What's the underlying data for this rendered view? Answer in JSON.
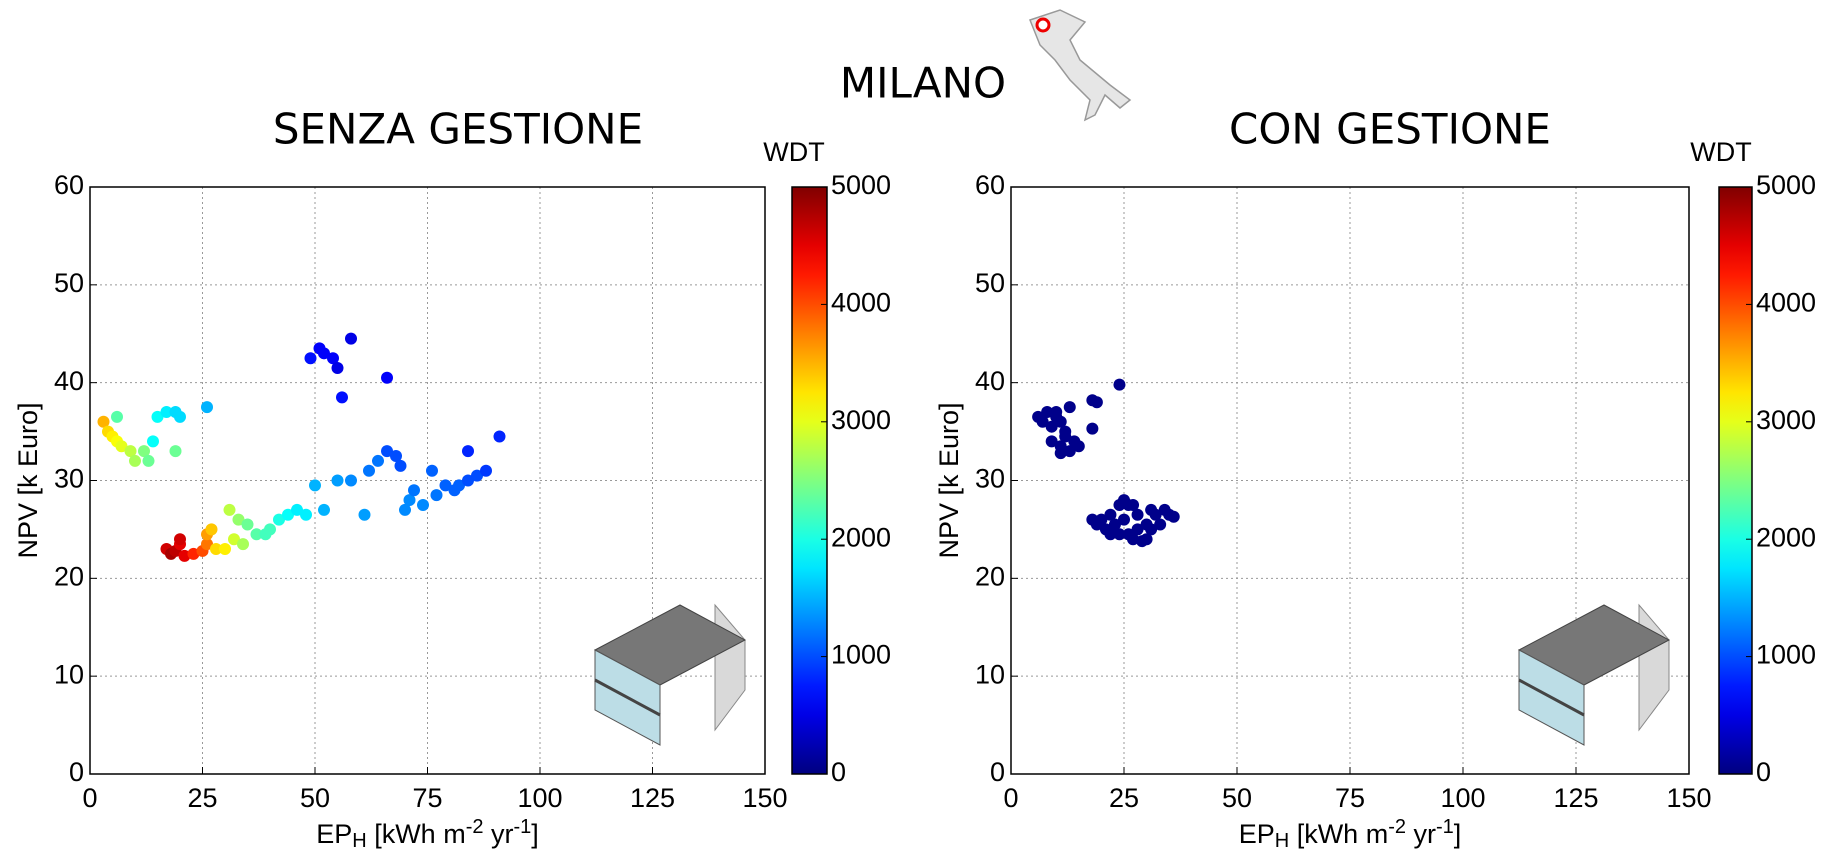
{
  "subtitle": "MILANO",
  "chart_data": [
    {
      "type": "scatter",
      "title": "SENZA GESTIONE",
      "xlabel": [
        "EP",
        "H",
        " [kWh m",
        "-2",
        " yr",
        "-1",
        "]"
      ],
      "ylabel": "NPV [k Euro]",
      "xlim": [
        0,
        150
      ],
      "ylim": [
        0,
        60
      ],
      "xticks": [
        0,
        25,
        50,
        75,
        100,
        125,
        150
      ],
      "yticks": [
        0,
        10,
        20,
        30,
        40,
        50,
        60
      ],
      "grid": true,
      "colorbar": {
        "label": "WDT",
        "clim": [
          0,
          5000
        ],
        "ticks": [
          0,
          1000,
          2000,
          3000,
          4000,
          5000
        ],
        "colormap": "jet"
      },
      "x": [
        3,
        4,
        5,
        6,
        7,
        9,
        10,
        12,
        13,
        6,
        15,
        17,
        19,
        20,
        19,
        14,
        26,
        17,
        18,
        19,
        20,
        20,
        21,
        23,
        25,
        26,
        26,
        27,
        28,
        30,
        31,
        32,
        33,
        34,
        35,
        37,
        39,
        40,
        42,
        44,
        46,
        48,
        52,
        50,
        55,
        58,
        61,
        62,
        64,
        66,
        68,
        69,
        70,
        71,
        72,
        74,
        76,
        77,
        79,
        81,
        82,
        84,
        86,
        88,
        84,
        91,
        49,
        51,
        52,
        54,
        55,
        56,
        58,
        66
      ],
      "y": [
        36,
        35,
        34.5,
        34,
        33.5,
        33,
        32,
        33,
        32,
        36.5,
        36.5,
        37,
        37,
        36.5,
        33,
        34,
        37.5,
        23,
        22.5,
        22.8,
        23.5,
        24,
        22.3,
        22.5,
        22.8,
        23.5,
        24.5,
        25,
        23,
        23,
        27,
        24,
        26,
        23.5,
        25.5,
        24.5,
        24.5,
        25,
        26,
        26.5,
        27,
        26.5,
        27,
        29.5,
        30,
        30,
        26.5,
        31,
        32,
        33,
        32.5,
        31.5,
        27,
        28,
        29,
        27.5,
        31,
        28.5,
        29.5,
        29,
        29.5,
        30,
        30.5,
        31,
        33,
        34.5,
        42.5,
        43.5,
        43,
        42.5,
        41.5,
        38.5,
        44.5,
        40.5
      ],
      "c": [
        3500,
        3300,
        3200,
        3100,
        3000,
        2800,
        2700,
        2500,
        2400,
        2300,
        1900,
        1800,
        1700,
        1700,
        2400,
        1900,
        1500,
        4600,
        4800,
        4700,
        4500,
        4600,
        4500,
        4200,
        4000,
        3800,
        3600,
        3400,
        3300,
        3200,
        2800,
        2900,
        2600,
        2700,
        2400,
        2300,
        2200,
        2200,
        2000,
        1900,
        1800,
        1800,
        1500,
        1500,
        1400,
        1300,
        1400,
        1200,
        1200,
        1000,
        1000,
        1000,
        1300,
        1300,
        1200,
        1300,
        1100,
        1200,
        1100,
        1100,
        1100,
        1000,
        1000,
        900,
        800,
        800,
        700,
        600,
        600,
        600,
        500,
        700,
        500,
        600
      ]
    },
    {
      "type": "scatter",
      "title": "CON GESTIONE",
      "xlabel": [
        "EP",
        "H",
        " [kWh m",
        "-2",
        " yr",
        "-1",
        "]"
      ],
      "ylabel": "NPV [k Euro]",
      "xlim": [
        0,
        150
      ],
      "ylim": [
        0,
        60
      ],
      "xticks": [
        0,
        25,
        50,
        75,
        100,
        125,
        150
      ],
      "yticks": [
        0,
        10,
        20,
        30,
        40,
        50,
        60
      ],
      "grid": true,
      "colorbar": {
        "label": "WDT",
        "clim": [
          0,
          5000
        ],
        "ticks": [
          0,
          1000,
          2000,
          3000,
          4000,
          5000
        ],
        "colormap": "jet"
      },
      "x": [
        6,
        7,
        8,
        9,
        10,
        11,
        12,
        9,
        11,
        12,
        13,
        14,
        15,
        11,
        10,
        13,
        18,
        19,
        18,
        24,
        18,
        19,
        20,
        21,
        22,
        23,
        24,
        24,
        25,
        26,
        27,
        28,
        26,
        27,
        29,
        30,
        30,
        31,
        32,
        33,
        34,
        35,
        36,
        22,
        25,
        28,
        31
      ],
      "y": [
        36.5,
        36,
        37,
        35.5,
        36.5,
        36,
        35,
        34,
        33.5,
        34.5,
        33,
        34,
        33.5,
        32.8,
        37,
        37.5,
        38.2,
        38,
        35.3,
        39.8,
        26,
        25.5,
        26,
        25,
        26.5,
        25.5,
        24.5,
        27.5,
        28,
        27.5,
        27.5,
        26.5,
        24.5,
        24,
        23.8,
        24,
        25.5,
        27,
        26.5,
        25.5,
        27,
        26.5,
        26.3,
        24.5,
        26,
        25,
        25
      ],
      "c": [
        50,
        50,
        50,
        50,
        50,
        50,
        50,
        50,
        50,
        50,
        50,
        50,
        50,
        50,
        50,
        50,
        50,
        50,
        50,
        50,
        50,
        50,
        50,
        50,
        50,
        50,
        50,
        50,
        50,
        50,
        50,
        50,
        50,
        50,
        50,
        50,
        50,
        50,
        50,
        50,
        50,
        50,
        50,
        50,
        50,
        50,
        50
      ]
    }
  ]
}
